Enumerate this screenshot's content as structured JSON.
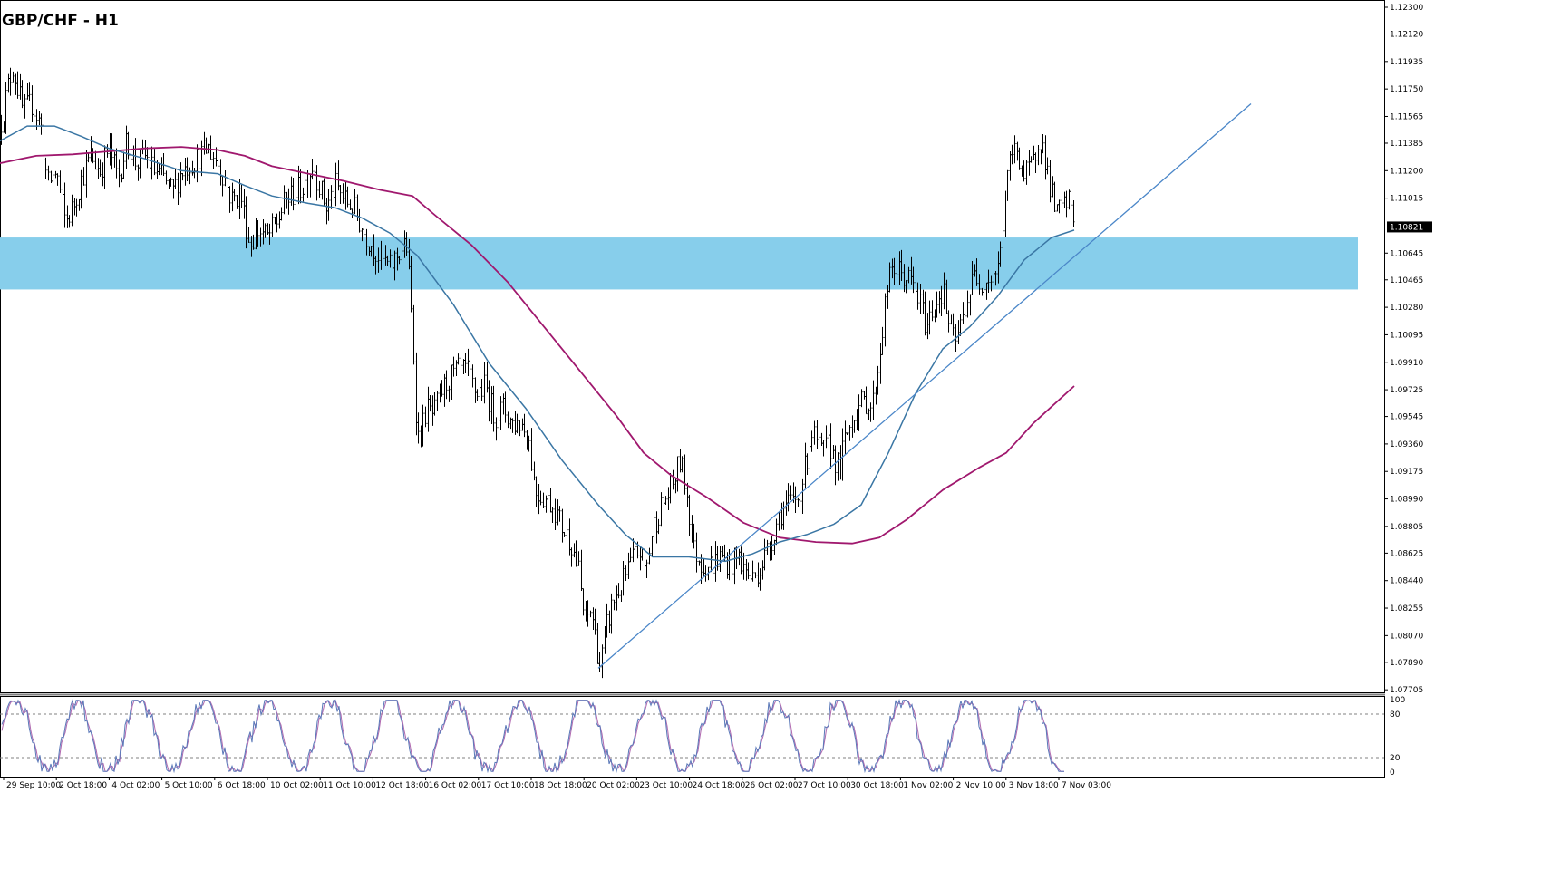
{
  "chart_data": {
    "type": "candlestick",
    "title": "GBP/CHF - H1",
    "price_axis": {
      "range": [
        1.077,
        1.123
      ],
      "ticks": [
        "1.12300",
        "1.12120",
        "1.11935",
        "1.11750",
        "1.11565",
        "1.11385",
        "1.11200",
        "1.11015",
        "1.10645",
        "1.10465",
        "1.10280",
        "1.10095",
        "1.09910",
        "1.09725",
        "1.09545",
        "1.09360",
        "1.09175",
        "1.08990",
        "1.08805",
        "1.08625",
        "1.08440",
        "1.08255",
        "1.08070",
        "1.07890",
        "1.07705"
      ],
      "current_price": "1.10821"
    },
    "time_axis": {
      "labels": [
        "29 Sep 10:00",
        "2 Oct 18:00",
        "4 Oct 02:00",
        "5 Oct 10:00",
        "6 Oct 18:00",
        "10 Oct 02:00",
        "11 Oct 10:00",
        "12 Oct 18:00",
        "16 Oct 02:00",
        "17 Oct 10:00",
        "18 Oct 18:00",
        "20 Oct 02:00",
        "23 Oct 10:00",
        "24 Oct 18:00",
        "26 Oct 02:00",
        "27 Oct 10:00",
        "30 Oct 18:00",
        "1 Nov 02:00",
        "2 Nov 10:00",
        "3 Nov 18:00",
        "7 Nov 03:00"
      ]
    },
    "price_path": [
      [
        0,
        1.115
      ],
      [
        8,
        1.1175
      ],
      [
        14,
        1.119
      ],
      [
        25,
        1.116
      ],
      [
        35,
        1.1165
      ],
      [
        45,
        1.115
      ],
      [
        52,
        1.111
      ],
      [
        62,
        1.112
      ],
      [
        72,
        1.1085
      ],
      [
        80,
        1.1095
      ],
      [
        90,
        1.1115
      ],
      [
        100,
        1.113
      ],
      [
        110,
        1.112
      ],
      [
        120,
        1.1135
      ],
      [
        130,
        1.1115
      ],
      [
        140,
        1.114
      ],
      [
        150,
        1.1125
      ],
      [
        160,
        1.113
      ],
      [
        170,
        1.112
      ],
      [
        180,
        1.1115
      ],
      [
        190,
        1.1105
      ],
      [
        200,
        1.112
      ],
      [
        210,
        1.1125
      ],
      [
        220,
        1.113
      ],
      [
        230,
        1.1135
      ],
      [
        240,
        1.1125
      ],
      [
        248,
        1.1115
      ],
      [
        255,
        1.11
      ],
      [
        265,
        1.1105
      ],
      [
        275,
        1.107
      ],
      [
        285,
        1.108
      ],
      [
        295,
        1.1075
      ],
      [
        305,
        1.1085
      ],
      [
        315,
        1.11
      ],
      [
        325,
        1.1105
      ],
      [
        335,
        1.111
      ],
      [
        345,
        1.1125
      ],
      [
        352,
        1.111
      ],
      [
        360,
        1.1095
      ],
      [
        370,
        1.111
      ],
      [
        380,
        1.11
      ],
      [
        390,
        1.1095
      ],
      [
        400,
        1.108
      ],
      [
        410,
        1.107
      ],
      [
        420,
        1.106
      ],
      [
        430,
        1.1055
      ],
      [
        440,
        1.1065
      ],
      [
        448,
        1.107
      ],
      [
        452,
        1.104
      ],
      [
        456,
        1.0995
      ],
      [
        460,
        1.094
      ],
      [
        465,
        1.0945
      ],
      [
        470,
        1.096
      ],
      [
        478,
        1.0955
      ],
      [
        486,
        1.097
      ],
      [
        495,
        1.098
      ],
      [
        505,
        1.0985
      ],
      [
        515,
        1.0985
      ],
      [
        525,
        1.097
      ],
      [
        535,
        1.0975
      ],
      [
        545,
        1.0955
      ],
      [
        555,
        1.096
      ],
      [
        565,
        1.095
      ],
      [
        575,
        1.095
      ],
      [
        583,
        1.094
      ],
      [
        590,
        1.0905
      ],
      [
        600,
        1.09
      ],
      [
        610,
        1.0895
      ],
      [
        620,
        1.088
      ],
      [
        630,
        1.087
      ],
      [
        638,
        1.085
      ],
      [
        645,
        1.0815
      ],
      [
        652,
        1.0825
      ],
      [
        658,
        1.08
      ],
      [
        662,
        1.0785
      ],
      [
        668,
        1.081
      ],
      [
        676,
        1.083
      ],
      [
        685,
        1.084
      ],
      [
        695,
        1.0855
      ],
      [
        705,
        1.0865
      ],
      [
        712,
        1.085
      ],
      [
        720,
        1.088
      ],
      [
        730,
        1.0895
      ],
      [
        740,
        1.0905
      ],
      [
        750,
        1.0925
      ],
      [
        757,
        1.0905
      ],
      [
        765,
        1.0865
      ],
      [
        775,
        1.0855
      ],
      [
        785,
        1.0855
      ],
      [
        795,
        1.086
      ],
      [
        805,
        1.0855
      ],
      [
        815,
        1.086
      ],
      [
        822,
        1.085
      ],
      [
        830,
        1.0845
      ],
      [
        840,
        1.0855
      ],
      [
        850,
        1.087
      ],
      [
        860,
        1.089
      ],
      [
        870,
        1.0895
      ],
      [
        880,
        1.09
      ],
      [
        888,
        1.092
      ],
      [
        895,
        1.0945
      ],
      [
        905,
        1.093
      ],
      [
        915,
        1.0935
      ],
      [
        925,
        1.092
      ],
      [
        935,
        1.0945
      ],
      [
        945,
        1.096
      ],
      [
        955,
        1.0965
      ],
      [
        962,
        1.096
      ],
      [
        970,
        1.0995
      ],
      [
        978,
        1.104
      ],
      [
        985,
        1.1055
      ],
      [
        995,
        1.105
      ],
      [
        1005,
        1.1045
      ],
      [
        1015,
        1.103
      ],
      [
        1022,
        1.1015
      ],
      [
        1030,
        1.103
      ],
      [
        1040,
        1.104
      ],
      [
        1048,
        1.101
      ],
      [
        1055,
        1.1005
      ],
      [
        1065,
        1.103
      ],
      [
        1075,
        1.105
      ],
      [
        1085,
        1.1045
      ],
      [
        1095,
        1.105
      ],
      [
        1102,
        1.1055
      ],
      [
        1108,
        1.11
      ],
      [
        1115,
        1.113
      ],
      [
        1122,
        1.1135
      ],
      [
        1130,
        1.1115
      ],
      [
        1140,
        1.1125
      ],
      [
        1146,
        1.1145
      ],
      [
        1152,
        1.113
      ],
      [
        1158,
        1.111
      ],
      [
        1165,
        1.109
      ],
      [
        1172,
        1.1095
      ],
      [
        1180,
        1.11
      ],
      [
        1185,
        1.1085
      ]
    ],
    "moving_average_fast": [
      [
        0,
        1.114
      ],
      [
        30,
        1.115
      ],
      [
        60,
        1.115
      ],
      [
        90,
        1.1143
      ],
      [
        120,
        1.1135
      ],
      [
        160,
        1.1128
      ],
      [
        200,
        1.112
      ],
      [
        240,
        1.1118
      ],
      [
        270,
        1.111
      ],
      [
        300,
        1.1103
      ],
      [
        340,
        1.1098
      ],
      [
        370,
        1.1095
      ],
      [
        400,
        1.1088
      ],
      [
        430,
        1.1078
      ],
      [
        460,
        1.1063
      ],
      [
        500,
        1.103
      ],
      [
        540,
        1.099
      ],
      [
        580,
        1.096
      ],
      [
        620,
        1.0925
      ],
      [
        660,
        1.0895
      ],
      [
        690,
        1.0875
      ],
      [
        720,
        1.086
      ],
      [
        760,
        1.086
      ],
      [
        800,
        1.0857
      ],
      [
        830,
        1.0862
      ],
      [
        860,
        1.087
      ],
      [
        890,
        1.0875
      ],
      [
        920,
        1.0882
      ],
      [
        950,
        1.0895
      ],
      [
        980,
        1.093
      ],
      [
        1010,
        1.097
      ],
      [
        1040,
        1.1
      ],
      [
        1070,
        1.1015
      ],
      [
        1100,
        1.1035
      ],
      [
        1130,
        1.106
      ],
      [
        1160,
        1.1075
      ],
      [
        1185,
        1.108
      ]
    ],
    "moving_average_slow": [
      [
        0,
        1.1125
      ],
      [
        40,
        1.113
      ],
      [
        80,
        1.1131
      ],
      [
        120,
        1.1133
      ],
      [
        160,
        1.1135
      ],
      [
        200,
        1.1136
      ],
      [
        240,
        1.1134
      ],
      [
        270,
        1.113
      ],
      [
        300,
        1.1123
      ],
      [
        340,
        1.1118
      ],
      [
        380,
        1.1113
      ],
      [
        420,
        1.1107
      ],
      [
        455,
        1.1103
      ],
      [
        480,
        1.109
      ],
      [
        520,
        1.107
      ],
      [
        560,
        1.1045
      ],
      [
        600,
        1.1015
      ],
      [
        640,
        1.0985
      ],
      [
        680,
        1.0955
      ],
      [
        710,
        1.093
      ],
      [
        740,
        1.0915
      ],
      [
        780,
        1.09
      ],
      [
        820,
        1.0883
      ],
      [
        860,
        1.0873
      ],
      [
        900,
        1.087
      ],
      [
        940,
        1.0869
      ],
      [
        970,
        1.0873
      ],
      [
        1000,
        1.0885
      ],
      [
        1040,
        1.0905
      ],
      [
        1080,
        1.092
      ],
      [
        1110,
        1.093
      ],
      [
        1140,
        1.095
      ],
      [
        1185,
        1.0975
      ]
    ],
    "trendline": {
      "from": [
        660,
        1.0785
      ],
      "to": [
        1380,
        1.1165
      ]
    },
    "support_zone": [
      1.104,
      1.1075
    ],
    "stochastic": {
      "range": [
        0,
        100
      ],
      "ticks": [
        "100",
        "80",
        "20",
        "0"
      ],
      "levels": [
        80,
        20
      ]
    },
    "colors": {
      "candles": "#000000",
      "moving_average_fast": "#3a76a4",
      "moving_average_slow": "#a0186e",
      "trendline": "#4a86c8",
      "support_zone": "#87ceeb",
      "current_price_box": "#000000",
      "stochastic_main": "#5a78b8",
      "stochastic_signal": "#b06ab0"
    },
    "grid": false,
    "legend": "none"
  }
}
